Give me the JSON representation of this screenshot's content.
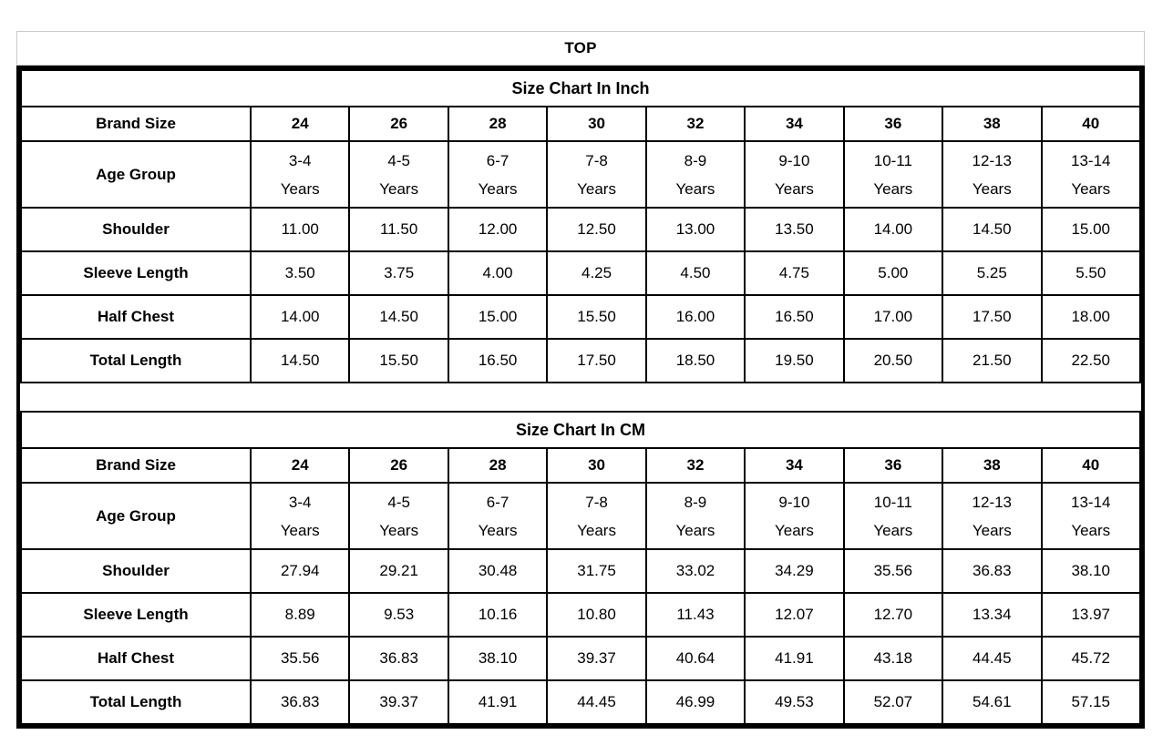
{
  "header": {
    "title": "TOP"
  },
  "colors": {
    "background": "#ffffff",
    "text": "#000000",
    "heavy_border": "#000000",
    "thin_border": "#000000",
    "top_box_border": "#c9c9c9"
  },
  "table": {
    "sections": [
      {
        "title": "Size Chart In Inch",
        "brand_size_label": "Brand Size",
        "age_group_label": "Age Group",
        "brand_sizes": [
          "24",
          "26",
          "28",
          "30",
          "32",
          "34",
          "36",
          "38",
          "40"
        ],
        "age_groups": [
          {
            "range": "3-4",
            "unit": "Years"
          },
          {
            "range": "4-5",
            "unit": "Years"
          },
          {
            "range": "6-7",
            "unit": "Years"
          },
          {
            "range": "7-8",
            "unit": "Years"
          },
          {
            "range": "8-9",
            "unit": "Years"
          },
          {
            "range": "9-10",
            "unit": "Years"
          },
          {
            "range": "10-11",
            "unit": "Years"
          },
          {
            "range": "12-13",
            "unit": "Years"
          },
          {
            "range": "13-14",
            "unit": "Years"
          }
        ],
        "measurements": [
          {
            "label": "Shoulder",
            "values": [
              "11.00",
              "11.50",
              "12.00",
              "12.50",
              "13.00",
              "13.50",
              "14.00",
              "14.50",
              "15.00"
            ]
          },
          {
            "label": "Sleeve Length",
            "values": [
              "3.50",
              "3.75",
              "4.00",
              "4.25",
              "4.50",
              "4.75",
              "5.00",
              "5.25",
              "5.50"
            ]
          },
          {
            "label": "Half Chest",
            "values": [
              "14.00",
              "14.50",
              "15.00",
              "15.50",
              "16.00",
              "16.50",
              "17.00",
              "17.50",
              "18.00"
            ]
          },
          {
            "label": "Total Length",
            "values": [
              "14.50",
              "15.50",
              "16.50",
              "17.50",
              "18.50",
              "19.50",
              "20.50",
              "21.50",
              "22.50"
            ]
          }
        ]
      },
      {
        "title": "Size Chart In CM",
        "brand_size_label": "Brand Size",
        "age_group_label": "Age Group",
        "brand_sizes": [
          "24",
          "26",
          "28",
          "30",
          "32",
          "34",
          "36",
          "38",
          "40"
        ],
        "age_groups": [
          {
            "range": "3-4",
            "unit": "Years"
          },
          {
            "range": "4-5",
            "unit": "Years"
          },
          {
            "range": "6-7",
            "unit": "Years"
          },
          {
            "range": "7-8",
            "unit": "Years"
          },
          {
            "range": "8-9",
            "unit": "Years"
          },
          {
            "range": "9-10",
            "unit": "Years"
          },
          {
            "range": "10-11",
            "unit": "Years"
          },
          {
            "range": "12-13",
            "unit": "Years"
          },
          {
            "range": "13-14",
            "unit": "Years"
          }
        ],
        "measurements": [
          {
            "label": "Shoulder",
            "values": [
              "27.94",
              "29.21",
              "30.48",
              "31.75",
              "33.02",
              "34.29",
              "35.56",
              "36.83",
              "38.10"
            ]
          },
          {
            "label": "Sleeve Length",
            "values": [
              "8.89",
              "9.53",
              "10.16",
              "10.80",
              "11.43",
              "12.07",
              "12.70",
              "13.34",
              "13.97"
            ]
          },
          {
            "label": "Half Chest",
            "values": [
              "35.56",
              "36.83",
              "38.10",
              "39.37",
              "40.64",
              "41.91",
              "43.18",
              "44.45",
              "45.72"
            ]
          },
          {
            "label": "Total Length",
            "values": [
              "36.83",
              "39.37",
              "41.91",
              "44.45",
              "46.99",
              "49.53",
              "52.07",
              "54.61",
              "57.15"
            ]
          }
        ]
      }
    ]
  }
}
